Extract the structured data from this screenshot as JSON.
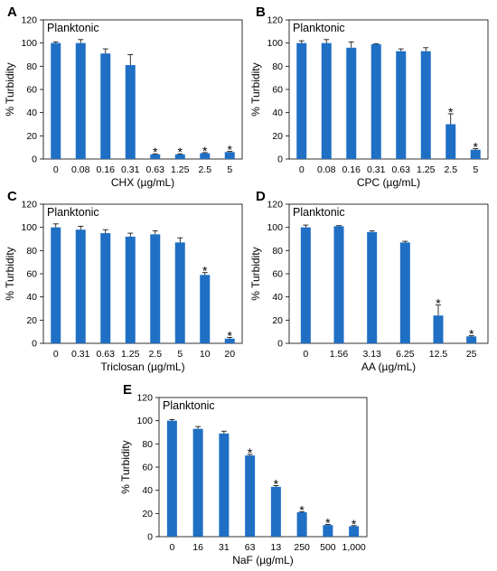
{
  "bar_color": "#1f6fc5",
  "chart_data": [
    {
      "panel": "A",
      "type": "bar",
      "inset_label": "Planktonic",
      "xlabel": "CHX (µg/mL)",
      "ylabel": "% Turbidity",
      "ylim": [
        0,
        120
      ],
      "yticks": [
        0,
        20,
        40,
        60,
        80,
        100,
        120
      ],
      "categories": [
        "0",
        "0.08",
        "0.16",
        "0.31",
        "0.63",
        "1.25",
        "2.5",
        "5"
      ],
      "values": [
        100,
        100,
        91,
        81,
        4,
        4,
        5,
        6
      ],
      "errors": [
        1,
        3,
        4,
        9,
        0.5,
        0.5,
        0.5,
        0.5
      ],
      "significant": [
        false,
        false,
        false,
        false,
        true,
        true,
        true,
        true
      ]
    },
    {
      "panel": "B",
      "type": "bar",
      "inset_label": "Planktonic",
      "xlabel": "CPC (µg/mL)",
      "ylabel": "% Turbidity",
      "ylim": [
        0,
        120
      ],
      "yticks": [
        0,
        20,
        40,
        60,
        80,
        100,
        120
      ],
      "categories": [
        "0",
        "0.08",
        "0.16",
        "0.31",
        "0.63",
        "1.25",
        "2.5",
        "5"
      ],
      "values": [
        100,
        100,
        96,
        99,
        93,
        93,
        30,
        8
      ],
      "errors": [
        2,
        3,
        5,
        0.5,
        2,
        3,
        9,
        1
      ],
      "significant": [
        false,
        false,
        false,
        false,
        false,
        false,
        true,
        true
      ]
    },
    {
      "panel": "C",
      "type": "bar",
      "inset_label": "Planktonic",
      "xlabel": "Triclosan (µg/mL)",
      "ylabel": "% Turbidity",
      "ylim": [
        0,
        120
      ],
      "yticks": [
        0,
        20,
        40,
        60,
        80,
        100,
        120
      ],
      "categories": [
        "0",
        "0.31",
        "0.63",
        "1.25",
        "2.5",
        "5",
        "10",
        "20"
      ],
      "values": [
        100,
        98,
        95,
        92,
        94,
        87,
        59,
        4
      ],
      "errors": [
        3,
        3,
        3,
        3,
        3,
        4,
        2,
        1
      ],
      "significant": [
        false,
        false,
        false,
        false,
        false,
        false,
        true,
        true
      ]
    },
    {
      "panel": "D",
      "type": "bar",
      "inset_label": "Planktonic",
      "xlabel": "AA (µg/mL)",
      "ylabel": "% Turbidity",
      "ylim": [
        0,
        120
      ],
      "yticks": [
        0,
        20,
        40,
        60,
        80,
        100,
        120
      ],
      "categories": [
        "0",
        "1.56",
        "3.13",
        "6.25",
        "12.5",
        "25"
      ],
      "values": [
        100,
        101,
        96,
        87,
        24,
        6
      ],
      "errors": [
        2,
        0.5,
        1,
        1,
        9,
        0.5
      ],
      "significant": [
        false,
        false,
        false,
        false,
        true,
        true
      ]
    },
    {
      "panel": "E",
      "type": "bar",
      "inset_label": "Planktonic",
      "xlabel": "NaF (µg/mL)",
      "ylabel": "% Turbidity",
      "ylim": [
        0,
        120
      ],
      "yticks": [
        0,
        20,
        40,
        60,
        80,
        100,
        120
      ],
      "categories": [
        "0",
        "16",
        "31",
        "63",
        "13",
        "250",
        "500",
        "1,000"
      ],
      "values": [
        100,
        93,
        89,
        70,
        43,
        21,
        10,
        9
      ],
      "errors": [
        1,
        2,
        2,
        1,
        1,
        0.5,
        0.5,
        0.5
      ],
      "significant": [
        false,
        false,
        false,
        true,
        true,
        true,
        true,
        true
      ]
    }
  ]
}
